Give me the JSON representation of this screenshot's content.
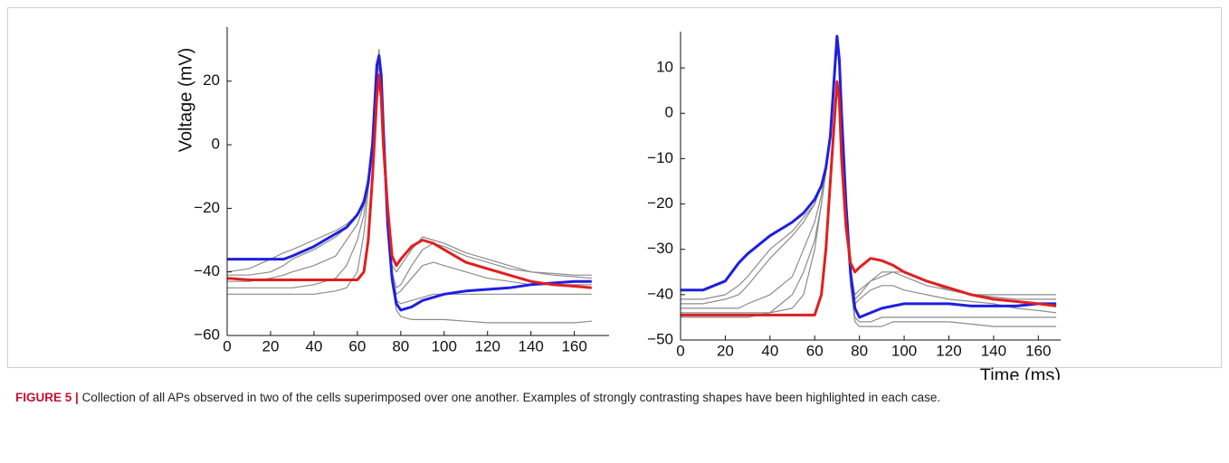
{
  "chart_data": [
    {
      "type": "line",
      "ylabel": "Voltage (mV)",
      "xlim": [
        0,
        176
      ],
      "ylim": [
        -60,
        37
      ],
      "xticks": [
        0,
        20,
        40,
        60,
        80,
        100,
        120,
        140,
        160
      ],
      "yticks": [
        {
          "value": -60,
          "label": "−60"
        },
        {
          "value": -40,
          "label": "−40"
        },
        {
          "value": -20,
          "label": "−20"
        },
        0,
        20
      ],
      "x": [
        0,
        10,
        20,
        26,
        30,
        40,
        50,
        55,
        60,
        63,
        65,
        67,
        69,
        70,
        71,
        72,
        74,
        76,
        78,
        80,
        85,
        90,
        95,
        100,
        110,
        120,
        130,
        140,
        150,
        160,
        168
      ],
      "series": [
        {
          "color": "#8c8c8c",
          "values": [
            -40,
            -39,
            -36,
            -34,
            -33,
            -30,
            -27,
            -25,
            -22,
            -18,
            -12,
            0,
            25,
            29,
            22,
            5,
            -25,
            -40,
            -45,
            -44,
            -38,
            -33,
            -31,
            -32,
            -35,
            -37,
            -39,
            -40,
            -40.5,
            -41,
            -41
          ]
        },
        {
          "color": "#8c8c8c",
          "values": [
            -45,
            -45,
            -45,
            -45,
            -45,
            -44,
            -42,
            -38,
            -30,
            -22,
            -12,
            0,
            22,
            27,
            20,
            3,
            -25,
            -42,
            -49,
            -50,
            -49,
            -48,
            -47,
            -47,
            -47,
            -47,
            -47,
            -47,
            -47,
            -47,
            -47
          ]
        },
        {
          "color": "#8c8c8c",
          "values": [
            -47,
            -47,
            -47,
            -47,
            -47,
            -47,
            -46,
            -45,
            -40,
            -28,
            -14,
            0,
            20,
            25,
            18,
            2,
            -26,
            -44,
            -52,
            -54,
            -55,
            -55,
            -55,
            -55,
            -55.5,
            -56,
            -56,
            -56,
            -56,
            -56,
            -55.5
          ]
        },
        {
          "color": "#8c8c8c",
          "values": [
            -43,
            -43,
            -42,
            -41,
            -40,
            -38,
            -35,
            -30,
            -25,
            -19,
            -11,
            0,
            20,
            26,
            19,
            3,
            -25,
            -42,
            -47,
            -46,
            -42,
            -38,
            -37,
            -38,
            -40,
            -42,
            -43,
            -44,
            -44,
            -44,
            -44
          ]
        },
        {
          "color": "#8c8c8c",
          "values": [
            -41,
            -41,
            -40,
            -38,
            -36,
            -33,
            -29,
            -26,
            -22,
            -17,
            -10,
            2,
            24,
            30,
            23,
            6,
            -22,
            -38,
            -40,
            -38,
            -33,
            -29,
            -30,
            -31,
            -34,
            -36,
            -38,
            -40,
            -41,
            -41.5,
            -42
          ]
        },
        {
          "color": "#1f1fe0",
          "values": [
            -36,
            -36,
            -36,
            -36,
            -35,
            -32,
            -28,
            -26,
            -22,
            -18,
            -12,
            0,
            25,
            28,
            22,
            5,
            -25,
            -42,
            -50,
            -52,
            -51,
            -49,
            -48,
            -47,
            -46,
            -45.5,
            -45,
            -44,
            -43.5,
            -43,
            -43
          ]
        },
        {
          "color": "#e01f1f",
          "values": [
            -42,
            -42.5,
            -42.5,
            -42.5,
            -42.5,
            -42.5,
            -42.5,
            -42.5,
            -42.5,
            -40,
            -30,
            -10,
            15,
            22,
            15,
            0,
            -20,
            -35,
            -38,
            -36,
            -32,
            -30,
            -31,
            -33,
            -37,
            -39,
            -41,
            -43,
            -44,
            -44.5,
            -45
          ]
        }
      ]
    },
    {
      "type": "line",
      "xlabel": "Time (ms)",
      "xlim": [
        0,
        170
      ],
      "ylim": [
        -50,
        18
      ],
      "xticks": [
        0,
        20,
        40,
        60,
        80,
        100,
        120,
        140,
        160
      ],
      "yticks": [
        {
          "value": -50,
          "label": "−50"
        },
        {
          "value": -40,
          "label": "−40"
        },
        {
          "value": -30,
          "label": "−30"
        },
        {
          "value": -20,
          "label": "−20"
        },
        {
          "value": -10,
          "label": "−10"
        },
        0,
        10
      ],
      "x": [
        0,
        10,
        20,
        26,
        30,
        40,
        50,
        55,
        60,
        63,
        65,
        67,
        69,
        70,
        71,
        72,
        74,
        76,
        78,
        80,
        85,
        90,
        95,
        100,
        110,
        120,
        130,
        140,
        150,
        160,
        168
      ],
      "series": [
        {
          "color": "#8c8c8c",
          "values": [
            -42,
            -42,
            -41,
            -40,
            -38,
            -32,
            -27,
            -24,
            -20,
            -16,
            -12,
            -5,
            10,
            16,
            11,
            0,
            -20,
            -36,
            -41,
            -40,
            -37,
            -35,
            -35,
            -36,
            -38,
            -39,
            -40,
            -40.5,
            -41,
            -41,
            -41
          ]
        },
        {
          "color": "#8c8c8c",
          "values": [
            -44,
            -44,
            -44,
            -44,
            -44,
            -44,
            -43,
            -40,
            -30,
            -20,
            -13,
            -5,
            8,
            15,
            10,
            -2,
            -22,
            -38,
            -45,
            -46,
            -46,
            -45,
            -45,
            -45,
            -45,
            -45,
            -45,
            -45,
            -45,
            -45,
            -45
          ]
        },
        {
          "color": "#8c8c8c",
          "values": [
            -45,
            -45,
            -45,
            -45,
            -45,
            -44,
            -40,
            -35,
            -28,
            -20,
            -13,
            -5,
            9,
            15,
            10,
            -1,
            -20,
            -36,
            -42,
            -41,
            -39,
            -38,
            -38,
            -39,
            -40,
            -41,
            -41.5,
            -42,
            -43,
            -43.5,
            -44
          ]
        },
        {
          "color": "#8c8c8c",
          "values": [
            -41,
            -41,
            -40,
            -38,
            -36,
            -30,
            -26,
            -23,
            -20,
            -16,
            -12,
            -5,
            10,
            16,
            11,
            0,
            -20,
            -35,
            -40,
            -39,
            -37,
            -36,
            -35,
            -35,
            -37,
            -39,
            -40,
            -40,
            -40,
            -40,
            -40
          ]
        },
        {
          "color": "#8c8c8c",
          "values": [
            -43,
            -43,
            -43,
            -43,
            -42,
            -40,
            -36,
            -30,
            -24,
            -18,
            -12,
            -5,
            9,
            15,
            10,
            -1,
            -22,
            -38,
            -46,
            -47,
            -47,
            -47,
            -46,
            -46,
            -46,
            -46,
            -46.5,
            -47,
            -47,
            -47,
            -47
          ]
        },
        {
          "color": "#1f1fe0",
          "values": [
            -39,
            -39,
            -37,
            -33,
            -31,
            -27,
            -24,
            -22,
            -19,
            -16,
            -12,
            -5,
            10,
            17,
            12,
            0,
            -20,
            -35,
            -43,
            -45,
            -44,
            -43,
            -42.5,
            -42,
            -42,
            -42,
            -42.5,
            -42.5,
            -42.5,
            -42,
            -42
          ]
        },
        {
          "color": "#e01f1f",
          "values": [
            -44.5,
            -44.5,
            -44.5,
            -44.5,
            -44.5,
            -44.5,
            -44.5,
            -44.5,
            -44.5,
            -40,
            -30,
            -15,
            0,
            7,
            3,
            -10,
            -25,
            -33,
            -35,
            -34,
            -32,
            -32.5,
            -33.5,
            -35,
            -37,
            -38.5,
            -40,
            -41,
            -41.5,
            -42,
            -42.5
          ]
        }
      ]
    }
  ],
  "caption": {
    "label": "FIGURE 5 |",
    "text": "Collection of all APs observed in two of the cells superimposed over one another. Examples of strongly contrasting shapes have been highlighted in each case."
  }
}
